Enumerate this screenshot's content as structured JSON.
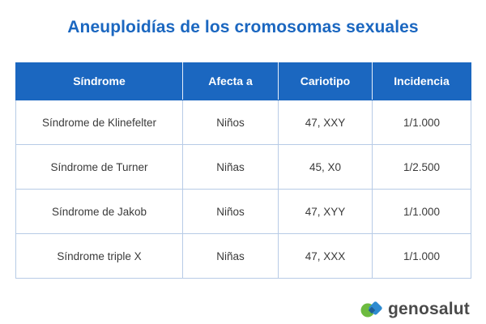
{
  "title": "Aneuploidías de los cromosomas sexuales",
  "table": {
    "headers": [
      "Síndrome",
      "Afecta a",
      "Cariotipo",
      "Incidencia"
    ],
    "rows": [
      [
        "Síndrome de Klinefelter",
        "Niños",
        "47, XXY",
        "1/1.000"
      ],
      [
        "Síndrome de Turner",
        "Niñas",
        "45, X0",
        "1/2.500"
      ],
      [
        "Síndrome de Jakob",
        "Niños",
        "47, XYY",
        "1/1.000"
      ],
      [
        "Síndrome triple X",
        "Niñas",
        "47, XXX",
        "1/1.000"
      ]
    ]
  },
  "logo": {
    "text": "genosalut",
    "colors": {
      "green": "#6dbb3f",
      "blue": "#2e8bd0"
    }
  },
  "colors": {
    "accent": "#1b67c0",
    "header_text": "#ffffff",
    "cell_text": "#3a3a3a",
    "border": "#b7cbe6"
  }
}
